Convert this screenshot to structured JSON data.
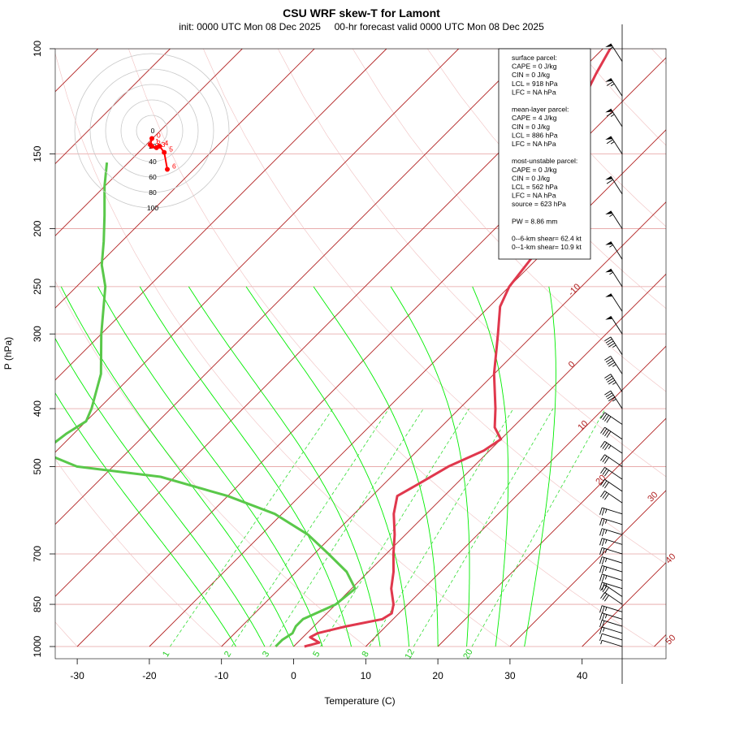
{
  "colors": {
    "isotherm": "#b22222",
    "isobar_grid": "#e5a0a0",
    "dry_adiabat_grid": "#f0c0c0",
    "moist_adiabat": "#00ee00",
    "mixing_ratio": "#33dd33",
    "temperature": "#e0384d",
    "dewpoint": "#5ac84a",
    "hodograph": "#ff0000",
    "text": "#000000"
  },
  "chart_data": {
    "type": "skew-T",
    "title": "CSU WRF skew-T for Lamont",
    "subtitle": "init: 0000 UTC Mon 08 Dec 2025     00-hr forecast valid 0000 UTC Mon 08 Dec 2025",
    "xlabel": "Temperature (C)",
    "ylabel": "P (hPa)",
    "xlim": [
      -33,
      50
    ],
    "ylim": [
      1000,
      100
    ],
    "x_ticks": [
      "-30",
      "-20",
      "-10",
      "0",
      "10",
      "20",
      "30",
      "40"
    ],
    "p_ticks": [
      "100",
      "150",
      "200",
      "250",
      "300",
      "400",
      "500",
      "700",
      "850",
      "1000"
    ],
    "isotherm_labels": [
      "-10",
      "0",
      "10",
      "20",
      "30",
      "40",
      "50"
    ],
    "mixing_ratio_labels": [
      "1",
      "2",
      "3",
      "5",
      "8",
      "12",
      "20"
    ],
    "temperature_profile": [
      {
        "p": 1000,
        "t": 1.5
      },
      {
        "p": 985,
        "t": 3.0
      },
      {
        "p": 965,
        "t": 1.0
      },
      {
        "p": 950,
        "t": 1.5
      },
      {
        "p": 925,
        "t": 4.5
      },
      {
        "p": 900,
        "t": 8.5
      },
      {
        "p": 880,
        "t": 9.0
      },
      {
        "p": 850,
        "t": 8.0
      },
      {
        "p": 800,
        "t": 5.5
      },
      {
        "p": 750,
        "t": 3.5
      },
      {
        "p": 700,
        "t": 1.0
      },
      {
        "p": 650,
        "t": -1.5
      },
      {
        "p": 600,
        "t": -4.5
      },
      {
        "p": 560,
        "t": -6.5
      },
      {
        "p": 530,
        "t": -5.0
      },
      {
        "p": 500,
        "t": -3.5
      },
      {
        "p": 470,
        "t": -0.8
      },
      {
        "p": 450,
        "t": 0.0
      },
      {
        "p": 430,
        "t": -2.5
      },
      {
        "p": 400,
        "t": -5.0
      },
      {
        "p": 350,
        "t": -10.0
      },
      {
        "p": 300,
        "t": -15.0
      },
      {
        "p": 270,
        "t": -18.5
      },
      {
        "p": 250,
        "t": -20.0
      },
      {
        "p": 220,
        "t": -21.0
      },
      {
        "p": 200,
        "t": -22.0
      },
      {
        "p": 175,
        "t": -25.5
      },
      {
        "p": 150,
        "t": -30.5
      },
      {
        "p": 130,
        "t": -34.5
      },
      {
        "p": 110,
        "t": -37.5
      },
      {
        "p": 100,
        "t": -39.0
      }
    ],
    "dewpoint_profile": [
      {
        "p": 1000,
        "t": -2.5
      },
      {
        "p": 975,
        "t": -2.5
      },
      {
        "p": 950,
        "t": -2.0
      },
      {
        "p": 925,
        "t": -2.5
      },
      {
        "p": 900,
        "t": -2.5
      },
      {
        "p": 850,
        "t": 0.0
      },
      {
        "p": 800,
        "t": 0.5
      },
      {
        "p": 750,
        "t": -3.0
      },
      {
        "p": 700,
        "t": -8.0
      },
      {
        "p": 650,
        "t": -13.5
      },
      {
        "p": 600,
        "t": -21.0
      },
      {
        "p": 560,
        "t": -30.0
      },
      {
        "p": 520,
        "t": -42.0
      },
      {
        "p": 500,
        "t": -55.0
      },
      {
        "p": 480,
        "t": -60.0
      },
      {
        "p": 460,
        "t": -61.5
      },
      {
        "p": 440,
        "t": -61.0
      },
      {
        "p": 420,
        "t": -60.0
      },
      {
        "p": 400,
        "t": -61.0
      },
      {
        "p": 350,
        "t": -64.5
      },
      {
        "p": 300,
        "t": -70.0
      },
      {
        "p": 250,
        "t": -76.0
      },
      {
        "p": 230,
        "t": -79.5
      },
      {
        "p": 210,
        "t": -82.5
      },
      {
        "p": 190,
        "t": -86.0
      },
      {
        "p": 170,
        "t": -90.0
      },
      {
        "p": 155,
        "t": -93.0
      }
    ],
    "wind_barbs": [
      {
        "p": 1000,
        "spd": 5
      },
      {
        "p": 975,
        "spd": 10
      },
      {
        "p": 950,
        "spd": 15
      },
      {
        "p": 925,
        "spd": 20
      },
      {
        "p": 900,
        "spd": 25
      },
      {
        "p": 875,
        "spd": 25
      },
      {
        "p": 850,
        "spd": 30
      },
      {
        "p": 825,
        "spd": 30
      },
      {
        "p": 800,
        "spd": 25
      },
      {
        "p": 775,
        "spd": 25
      },
      {
        "p": 750,
        "spd": 25
      },
      {
        "p": 725,
        "spd": 25
      },
      {
        "p": 700,
        "spd": 25
      },
      {
        "p": 675,
        "spd": 25
      },
      {
        "p": 650,
        "spd": 25
      },
      {
        "p": 625,
        "spd": 25
      },
      {
        "p": 600,
        "spd": 25
      },
      {
        "p": 575,
        "spd": 30
      },
      {
        "p": 550,
        "spd": 30
      },
      {
        "p": 525,
        "spd": 30
      },
      {
        "p": 500,
        "spd": 30
      },
      {
        "p": 475,
        "spd": 35
      },
      {
        "p": 450,
        "spd": 40
      },
      {
        "p": 425,
        "spd": 40
      },
      {
        "p": 400,
        "spd": 45
      },
      {
        "p": 375,
        "spd": 45
      },
      {
        "p": 350,
        "spd": 45
      },
      {
        "p": 325,
        "spd": 45
      },
      {
        "p": 300,
        "spd": 50
      },
      {
        "p": 275,
        "spd": 50
      },
      {
        "p": 250,
        "spd": 55
      },
      {
        "p": 225,
        "spd": 55
      },
      {
        "p": 200,
        "spd": 55
      },
      {
        "p": 175,
        "spd": 60
      },
      {
        "p": 150,
        "spd": 65
      },
      {
        "p": 135,
        "spd": 65
      },
      {
        "p": 120,
        "spd": 65
      },
      {
        "p": 105,
        "spd": 55
      }
    ],
    "hodograph": {
      "ring_labels": [
        "0",
        "20",
        "40",
        "60",
        "80",
        "100"
      ],
      "point_labels": [
        "0",
        "1",
        "2",
        "3",
        "4",
        "5",
        "6"
      ],
      "points": [
        {
          "u": 0,
          "v": -10
        },
        {
          "u": -2,
          "v": -18
        },
        {
          "u": 0,
          "v": -20
        },
        {
          "u": 6,
          "v": -22
        },
        {
          "u": 10,
          "v": -20
        },
        {
          "u": 16,
          "v": -28
        },
        {
          "u": 20,
          "v": -50
        }
      ]
    },
    "info_box": [
      "surface parcel:",
      "CAPE = 0 J/kg",
      "CIN = 0 J/kg",
      "LCL = 918 hPa",
      "LFC = NA hPa",
      "",
      "mean-layer parcel:",
      "CAPE = 4 J/kg",
      "CIN = 0 J/kg",
      "LCL = 886 hPa",
      "LFC = NA hPa",
      "",
      "most-unstable parcel:",
      "CAPE = 0 J/kg",
      "CIN = 0 J/kg",
      "LCL = 562 hPa",
      "LFC = NA hPa",
      "source = 623 hPa",
      "",
      "PW =  8.86 mm",
      "",
      "0--6-km shear= 62.4 kt",
      "0--1-km shear= 10.9 kt"
    ]
  }
}
